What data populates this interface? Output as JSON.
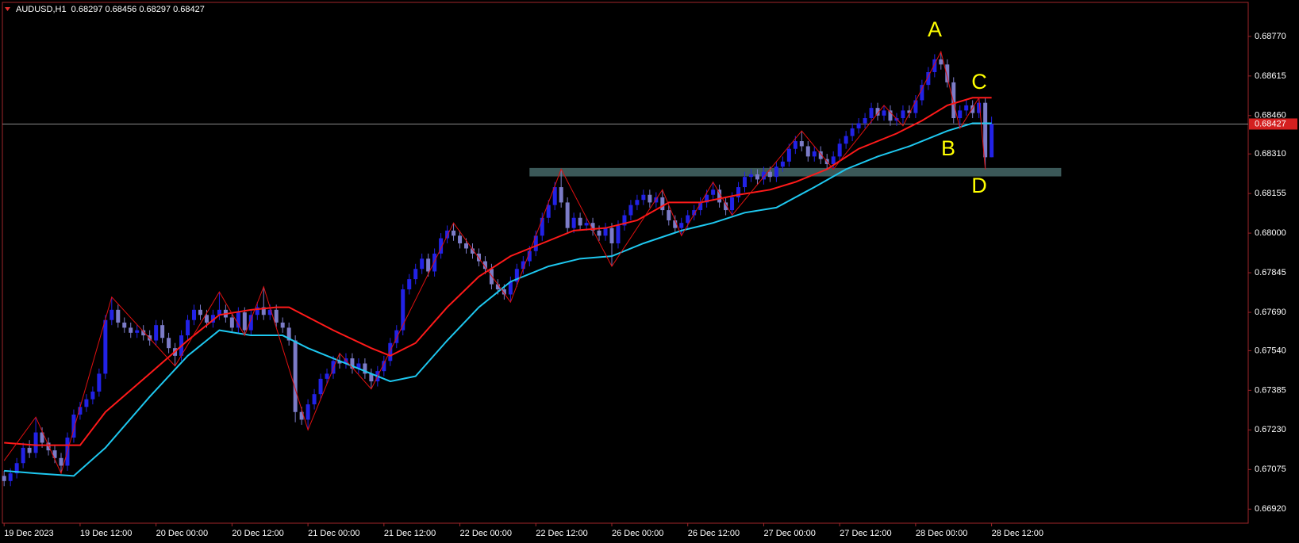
{
  "chart_data": {
    "type": "candlestick",
    "title": "AUDUSD,H1  0.68297 0.68456 0.68297 0.68427",
    "categories": [
      "19 Dec 2023",
      null,
      null,
      null,
      null,
      null,
      null,
      null,
      null,
      null,
      null,
      null,
      "19 Dec 12:00",
      null,
      null,
      null,
      null,
      null,
      null,
      null,
      null,
      null,
      null,
      null,
      "20 Dec 00:00",
      null,
      null,
      null,
      null,
      null,
      null,
      null,
      null,
      null,
      null,
      null,
      "20 Dec 12:00",
      null,
      null,
      null,
      null,
      null,
      null,
      null,
      null,
      null,
      null,
      null,
      "21 Dec 00:00",
      null,
      null,
      null,
      null,
      null,
      null,
      null,
      null,
      null,
      null,
      null,
      "21 Dec 12:00",
      null,
      null,
      null,
      null,
      null,
      null,
      null,
      null,
      null,
      null,
      null,
      "22 Dec 00:00",
      null,
      null,
      null,
      null,
      null,
      null,
      null,
      null,
      null,
      null,
      null,
      "22 Dec 12:00",
      null,
      null,
      null,
      null,
      null,
      null,
      null,
      null,
      null,
      null,
      null,
      "26 Dec 00:00",
      null,
      null,
      null,
      null,
      null,
      null,
      null,
      null,
      null,
      null,
      null,
      "26 Dec 12:00",
      null,
      null,
      null,
      null,
      null,
      null,
      null,
      null,
      null,
      null,
      null,
      "27 Dec 00:00",
      null,
      null,
      null,
      null,
      null,
      null,
      null,
      null,
      null,
      null,
      null,
      "27 Dec 12:00",
      null,
      null,
      null,
      null,
      null,
      null,
      null,
      null,
      null,
      null,
      null,
      "28 Dec 00:00",
      null,
      null,
      null,
      null,
      null,
      null,
      null,
      null,
      null,
      null,
      null,
      "28 Dec 12:00"
    ],
    "ohlc": [
      [
        0.6705,
        0.6707,
        0.6701,
        0.6703
      ],
      [
        0.6703,
        0.6708,
        0.6701,
        0.6706
      ],
      [
        0.6706,
        0.6712,
        0.6704,
        0.671
      ],
      [
        0.671,
        0.6718,
        0.6708,
        0.6716
      ],
      [
        0.6716,
        0.6719,
        0.6712,
        0.6714
      ],
      [
        0.6714,
        0.6728,
        0.6712,
        0.6722
      ],
      [
        0.6722,
        0.6724,
        0.6716,
        0.6718
      ],
      [
        0.6718,
        0.672,
        0.6713,
        0.6715
      ],
      [
        0.6715,
        0.6717,
        0.671,
        0.6712
      ],
      [
        0.6712,
        0.6714,
        0.6706,
        0.6709
      ],
      [
        0.6709,
        0.6722,
        0.6707,
        0.672
      ],
      [
        0.672,
        0.6731,
        0.6718,
        0.6729
      ],
      [
        0.6729,
        0.6734,
        0.6727,
        0.6732
      ],
      [
        0.6732,
        0.6737,
        0.673,
        0.6735
      ],
      [
        0.6735,
        0.674,
        0.6733,
        0.6738
      ],
      [
        0.6738,
        0.6747,
        0.6736,
        0.6745
      ],
      [
        0.6745,
        0.6768,
        0.6743,
        0.6766
      ],
      [
        0.6766,
        0.6775,
        0.6764,
        0.677
      ],
      [
        0.677,
        0.6772,
        0.6763,
        0.6765
      ],
      [
        0.6765,
        0.6767,
        0.6761,
        0.6763
      ],
      [
        0.6763,
        0.6765,
        0.6759,
        0.6761
      ],
      [
        0.6761,
        0.6764,
        0.6759,
        0.6762
      ],
      [
        0.6762,
        0.6764,
        0.6758,
        0.676
      ],
      [
        0.676,
        0.6762,
        0.6756,
        0.6758
      ],
      [
        0.6758,
        0.6766,
        0.6756,
        0.6764
      ],
      [
        0.6764,
        0.6766,
        0.6757,
        0.6759
      ],
      [
        0.6759,
        0.6761,
        0.6753,
        0.6755
      ],
      [
        0.6755,
        0.6757,
        0.6748,
        0.6752
      ],
      [
        0.6752,
        0.6762,
        0.675,
        0.676
      ],
      [
        0.676,
        0.6768,
        0.6758,
        0.6766
      ],
      [
        0.6766,
        0.6772,
        0.6764,
        0.677
      ],
      [
        0.677,
        0.6772,
        0.6766,
        0.6768
      ],
      [
        0.6768,
        0.677,
        0.6763,
        0.6765
      ],
      [
        0.6765,
        0.677,
        0.6763,
        0.6768
      ],
      [
        0.6768,
        0.6777,
        0.6766,
        0.677
      ],
      [
        0.677,
        0.6772,
        0.6765,
        0.6767
      ],
      [
        0.6767,
        0.6769,
        0.6761,
        0.6763
      ],
      [
        0.6763,
        0.6771,
        0.6761,
        0.6769
      ],
      [
        0.6769,
        0.6771,
        0.676,
        0.6762
      ],
      [
        0.6762,
        0.677,
        0.676,
        0.6768
      ],
      [
        0.6768,
        0.6773,
        0.6766,
        0.6771
      ],
      [
        0.6771,
        0.6779,
        0.6766,
        0.6768
      ],
      [
        0.6768,
        0.6772,
        0.6766,
        0.677
      ],
      [
        0.677,
        0.6772,
        0.6763,
        0.6765
      ],
      [
        0.6765,
        0.6767,
        0.6761,
        0.6763
      ],
      [
        0.6763,
        0.6765,
        0.6756,
        0.6758
      ],
      [
        0.6758,
        0.676,
        0.6726,
        0.673
      ],
      [
        0.673,
        0.6732,
        0.6725,
        0.6727
      ],
      [
        0.6727,
        0.6735,
        0.6723,
        0.6733
      ],
      [
        0.6733,
        0.6739,
        0.6731,
        0.6737
      ],
      [
        0.6737,
        0.6745,
        0.6735,
        0.6743
      ],
      [
        0.6743,
        0.6747,
        0.6741,
        0.6745
      ],
      [
        0.6745,
        0.6752,
        0.6743,
        0.675
      ],
      [
        0.675,
        0.6753,
        0.6747,
        0.6749
      ],
      [
        0.6749,
        0.6753,
        0.6747,
        0.6751
      ],
      [
        0.6751,
        0.6753,
        0.6745,
        0.6747
      ],
      [
        0.6747,
        0.6751,
        0.6745,
        0.6749
      ],
      [
        0.6749,
        0.6751,
        0.6743,
        0.6745
      ],
      [
        0.6745,
        0.6747,
        0.6739,
        0.6742
      ],
      [
        0.6742,
        0.6748,
        0.674,
        0.6746
      ],
      [
        0.6746,
        0.6752,
        0.6744,
        0.675
      ],
      [
        0.675,
        0.6759,
        0.6748,
        0.6757
      ],
      [
        0.6757,
        0.6764,
        0.6755,
        0.6762
      ],
      [
        0.6762,
        0.678,
        0.676,
        0.6778
      ],
      [
        0.6778,
        0.6784,
        0.6776,
        0.6782
      ],
      [
        0.6782,
        0.6788,
        0.678,
        0.6786
      ],
      [
        0.6786,
        0.6792,
        0.6784,
        0.679
      ],
      [
        0.679,
        0.6792,
        0.6783,
        0.6785
      ],
      [
        0.6785,
        0.6794,
        0.6783,
        0.6792
      ],
      [
        0.6792,
        0.68,
        0.679,
        0.6798
      ],
      [
        0.6798,
        0.6803,
        0.6796,
        0.6801
      ],
      [
        0.6801,
        0.6804,
        0.6797,
        0.6799
      ],
      [
        0.6799,
        0.6801,
        0.6794,
        0.6796
      ],
      [
        0.6796,
        0.6798,
        0.6792,
        0.6794
      ],
      [
        0.6794,
        0.6796,
        0.679,
        0.6792
      ],
      [
        0.6792,
        0.6794,
        0.6787,
        0.6789
      ],
      [
        0.6789,
        0.6791,
        0.6784,
        0.6786
      ],
      [
        0.6786,
        0.6788,
        0.6778,
        0.678
      ],
      [
        0.678,
        0.6782,
        0.6776,
        0.6778
      ],
      [
        0.6778,
        0.678,
        0.6774,
        0.6776
      ],
      [
        0.6776,
        0.6783,
        0.6773,
        0.6781
      ],
      [
        0.6781,
        0.6788,
        0.6779,
        0.6786
      ],
      [
        0.6786,
        0.6791,
        0.6784,
        0.6789
      ],
      [
        0.6789,
        0.6795,
        0.6787,
        0.6793
      ],
      [
        0.6793,
        0.6801,
        0.6791,
        0.6799
      ],
      [
        0.6799,
        0.6808,
        0.6797,
        0.6806
      ],
      [
        0.6806,
        0.6813,
        0.6804,
        0.6811
      ],
      [
        0.6811,
        0.682,
        0.6809,
        0.6818
      ],
      [
        0.6818,
        0.6825,
        0.681,
        0.6812
      ],
      [
        0.6812,
        0.6814,
        0.68,
        0.6802
      ],
      [
        0.6802,
        0.6808,
        0.68,
        0.6806
      ],
      [
        0.6806,
        0.6808,
        0.6801,
        0.6803
      ],
      [
        0.6803,
        0.6806,
        0.6801,
        0.6804
      ],
      [
        0.6804,
        0.6806,
        0.6799,
        0.6801
      ],
      [
        0.6801,
        0.6803,
        0.6797,
        0.6799
      ],
      [
        0.6799,
        0.6804,
        0.6797,
        0.6802
      ],
      [
        0.6802,
        0.6804,
        0.6787,
        0.6796
      ],
      [
        0.6796,
        0.6805,
        0.6794,
        0.6803
      ],
      [
        0.6803,
        0.6809,
        0.6801,
        0.6807
      ],
      [
        0.6807,
        0.6813,
        0.6805,
        0.6811
      ],
      [
        0.6811,
        0.6815,
        0.6809,
        0.6813
      ],
      [
        0.6813,
        0.6817,
        0.6811,
        0.6815
      ],
      [
        0.6815,
        0.6817,
        0.681,
        0.6812
      ],
      [
        0.6812,
        0.6816,
        0.681,
        0.6814
      ],
      [
        0.6814,
        0.6817,
        0.6807,
        0.6809
      ],
      [
        0.6809,
        0.6811,
        0.6803,
        0.6805
      ],
      [
        0.6805,
        0.6807,
        0.68,
        0.6802
      ],
      [
        0.6802,
        0.6806,
        0.6799,
        0.6804
      ],
      [
        0.6804,
        0.6809,
        0.6802,
        0.6807
      ],
      [
        0.6807,
        0.6811,
        0.6805,
        0.6809
      ],
      [
        0.6809,
        0.6814,
        0.6807,
        0.6812
      ],
      [
        0.6812,
        0.6817,
        0.681,
        0.6815
      ],
      [
        0.6815,
        0.682,
        0.6813,
        0.6817
      ],
      [
        0.6817,
        0.6819,
        0.681,
        0.6812
      ],
      [
        0.6812,
        0.6814,
        0.6807,
        0.6809
      ],
      [
        0.6809,
        0.6816,
        0.6807,
        0.6814
      ],
      [
        0.6814,
        0.682,
        0.6812,
        0.6818
      ],
      [
        0.6818,
        0.6824,
        0.6816,
        0.6822
      ],
      [
        0.6822,
        0.6825,
        0.682,
        0.6823
      ],
      [
        0.6823,
        0.6825,
        0.6819,
        0.6821
      ],
      [
        0.6821,
        0.6826,
        0.6819,
        0.6824
      ],
      [
        0.6824,
        0.6826,
        0.682,
        0.6822
      ],
      [
        0.6822,
        0.6828,
        0.682,
        0.6826
      ],
      [
        0.6826,
        0.683,
        0.6824,
        0.6828
      ],
      [
        0.6828,
        0.6835,
        0.6826,
        0.6833
      ],
      [
        0.6833,
        0.6838,
        0.6831,
        0.6836
      ],
      [
        0.6836,
        0.684,
        0.6832,
        0.6834
      ],
      [
        0.6834,
        0.6836,
        0.6828,
        0.683
      ],
      [
        0.683,
        0.6834,
        0.6828,
        0.6832
      ],
      [
        0.6832,
        0.6834,
        0.6827,
        0.6829
      ],
      [
        0.6829,
        0.6831,
        0.6825,
        0.6827
      ],
      [
        0.6827,
        0.6832,
        0.6825,
        0.683
      ],
      [
        0.683,
        0.6837,
        0.6828,
        0.6835
      ],
      [
        0.6835,
        0.684,
        0.6833,
        0.6838
      ],
      [
        0.6838,
        0.6843,
        0.6836,
        0.6841
      ],
      [
        0.6841,
        0.6845,
        0.6839,
        0.6843
      ],
      [
        0.6843,
        0.6847,
        0.6841,
        0.6845
      ],
      [
        0.6845,
        0.6851,
        0.6843,
        0.6849
      ],
      [
        0.6849,
        0.6851,
        0.6844,
        0.6846
      ],
      [
        0.6846,
        0.685,
        0.6844,
        0.6848
      ],
      [
        0.6848,
        0.685,
        0.6842,
        0.6844
      ],
      [
        0.6844,
        0.6847,
        0.6842,
        0.6845
      ],
      [
        0.6845,
        0.685,
        0.6843,
        0.6848
      ],
      [
        0.6848,
        0.685,
        0.6845,
        0.6847
      ],
      [
        0.6847,
        0.6854,
        0.6845,
        0.6852
      ],
      [
        0.6852,
        0.686,
        0.685,
        0.6858
      ],
      [
        0.6858,
        0.6865,
        0.6856,
        0.6863
      ],
      [
        0.6863,
        0.687,
        0.6861,
        0.6868
      ],
      [
        0.6868,
        0.6871,
        0.6864,
        0.6866
      ],
      [
        0.6866,
        0.6868,
        0.6857,
        0.6859
      ],
      [
        0.6859,
        0.6861,
        0.6843,
        0.6845
      ],
      [
        0.6845,
        0.685,
        0.6841,
        0.6848
      ],
      [
        0.6848,
        0.6852,
        0.6846,
        0.685
      ],
      [
        0.685,
        0.6852,
        0.6845,
        0.6847
      ],
      [
        0.6847,
        0.6853,
        0.6845,
        0.6851
      ],
      [
        0.6851,
        0.6853,
        0.6825,
        0.68297
      ],
      [
        0.68297,
        0.68456,
        0.68297,
        0.68427
      ]
    ],
    "up_color": "#2222e6",
    "down_color": "#7c7cc8",
    "ylim": [
      0.66865,
      0.68903
    ],
    "yticks": [
      {
        "value": 0.6877,
        "label": "0.68770"
      },
      0.68615,
      {
        "value": 0.6846,
        "label": "0.68460"
      },
      {
        "value": 0.6831,
        "label": "0.68310"
      },
      0.68155,
      {
        "value": 0.68,
        "label": "0.68000"
      },
      0.67845,
      {
        "value": 0.6769,
        "label": "0.67690"
      },
      {
        "value": 0.6754,
        "label": "0.67540"
      },
      0.67385,
      {
        "value": 0.6723,
        "label": "0.67230"
      },
      0.67075,
      {
        "value": 0.6692,
        "label": "0.66920"
      }
    ],
    "current_price": {
      "value": 0.68427,
      "label": "0.68427"
    },
    "moving_averages": [
      {
        "color": "#ff1a1a",
        "x": [
          0,
          5,
          12,
          16,
          23,
          29,
          34,
          39,
          43,
          45,
          52,
          58,
          61,
          65,
          70,
          75,
          80,
          85,
          90,
          95,
          100,
          105,
          110,
          116,
          121,
          125,
          130,
          135,
          141,
          145,
          149,
          153,
          156
        ],
        "values": [
          0.6718,
          0.6717,
          0.6717,
          0.673,
          0.6745,
          0.6758,
          0.6768,
          0.677,
          0.6771,
          0.6771,
          0.6762,
          0.6755,
          0.6752,
          0.6757,
          0.6771,
          0.6783,
          0.6791,
          0.6796,
          0.6801,
          0.6802,
          0.6805,
          0.6812,
          0.6812,
          0.6815,
          0.6817,
          0.682,
          0.6825,
          0.6833,
          0.6839,
          0.6844,
          0.685,
          0.6853,
          0.6853
        ]
      },
      {
        "color": "#1ec8f0",
        "x": [
          0,
          5,
          11,
          16,
          23,
          29,
          34,
          39,
          44,
          48,
          54,
          61,
          65,
          70,
          75,
          80,
          86,
          91,
          96,
          101,
          107,
          112,
          117,
          122,
          128,
          133,
          138,
          143,
          149,
          153,
          156
        ],
        "values": [
          0.6707,
          0.6706,
          0.6705,
          0.6716,
          0.6736,
          0.6752,
          0.6762,
          0.676,
          0.676,
          0.6755,
          0.6749,
          0.6742,
          0.6744,
          0.6758,
          0.6771,
          0.6781,
          0.6787,
          0.679,
          0.6791,
          0.6796,
          0.6801,
          0.6804,
          0.6808,
          0.681,
          0.6818,
          0.6825,
          0.683,
          0.6834,
          0.684,
          0.6843,
          0.6843
        ]
      }
    ],
    "zigzag": {
      "color": "#e01010",
      "x": [
        0,
        5,
        9,
        17,
        27,
        34,
        38,
        41,
        48,
        53,
        58,
        71,
        80,
        88,
        96,
        104,
        107,
        112,
        115,
        126,
        131,
        139,
        142,
        148,
        151,
        154,
        155
      ],
      "values": [
        0.6711,
        0.6728,
        0.6706,
        0.6775,
        0.6748,
        0.6777,
        0.676,
        0.6779,
        0.6723,
        0.6753,
        0.6739,
        0.6804,
        0.6773,
        0.6825,
        0.6787,
        0.6817,
        0.6799,
        0.682,
        0.6807,
        0.684,
        0.6825,
        0.685,
        0.6842,
        0.6871,
        0.6841,
        0.6853,
        0.6825
      ]
    },
    "support_zone": {
      "x": [
        83,
        167
      ],
      "range": [
        0.68222,
        0.68255
      ],
      "color": "#3b5858"
    },
    "annotations": [
      "A",
      "B",
      "C",
      "D"
    ],
    "annotation_color": "#ffff00"
  }
}
